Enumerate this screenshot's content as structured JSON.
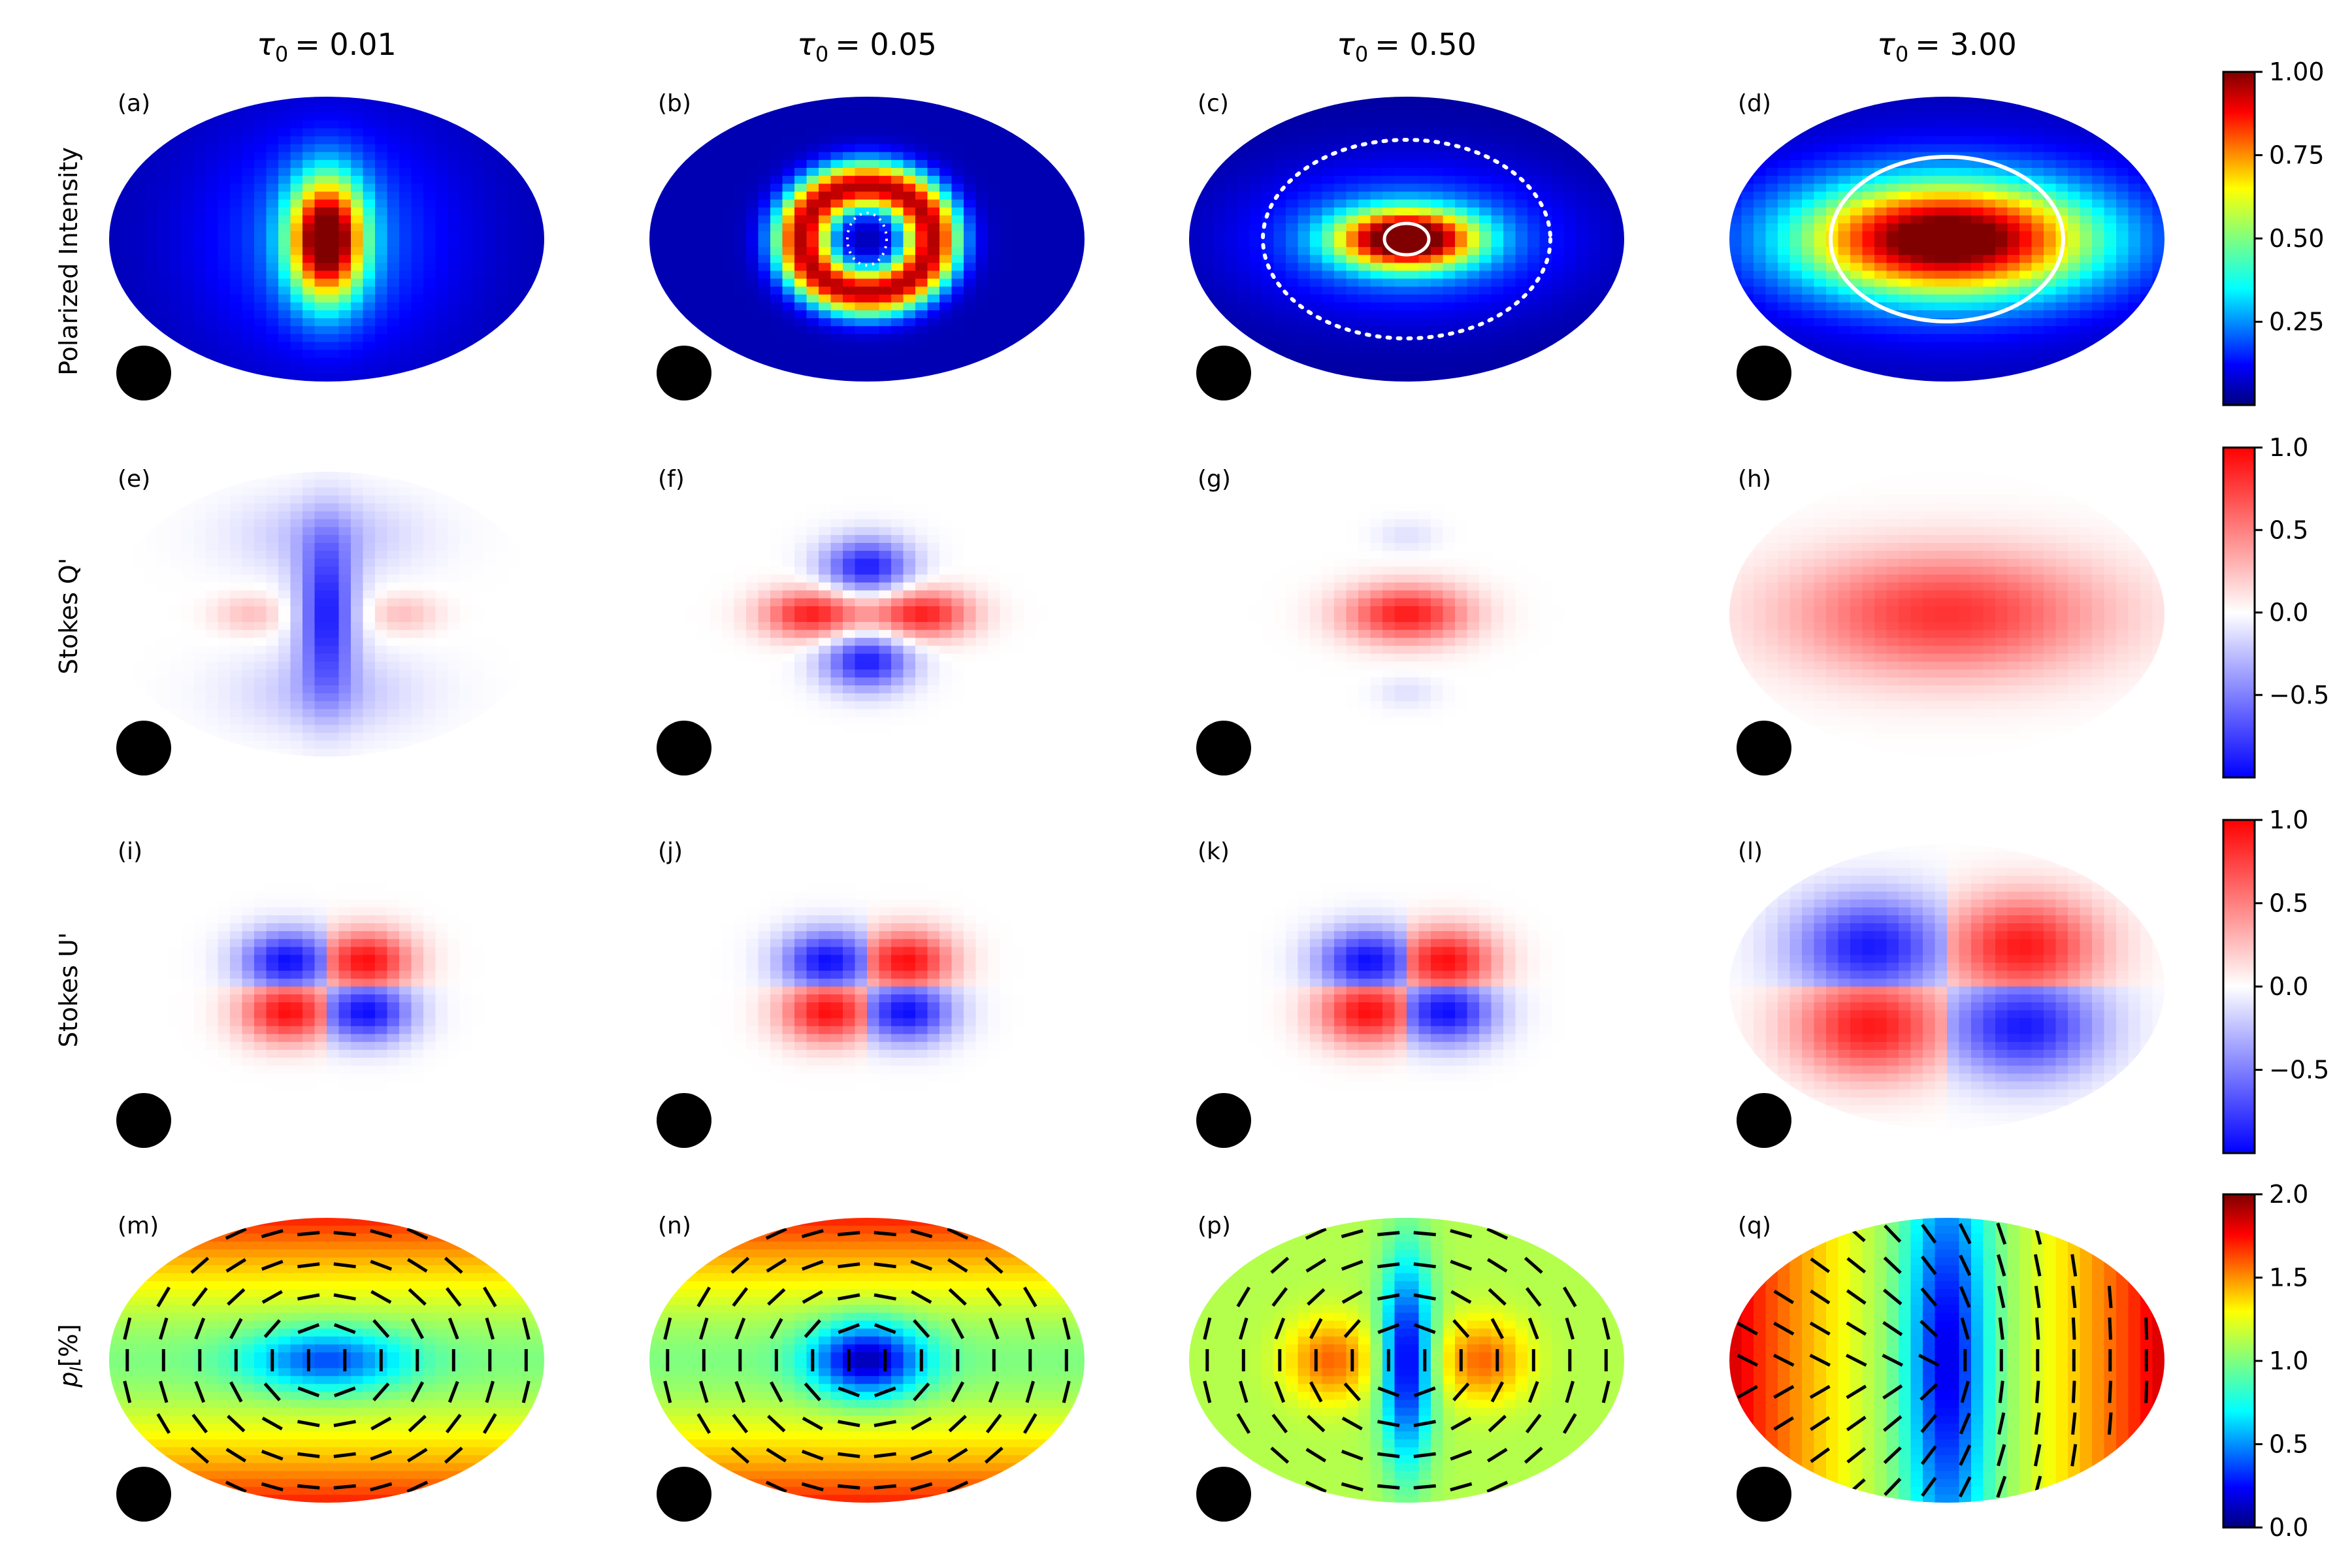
{
  "figure": {
    "columns": [
      {
        "tau_symbol": "τ",
        "subscript": "0",
        "value": "= 0.01"
      },
      {
        "tau_symbol": "τ",
        "subscript": "0",
        "value": "= 0.05"
      },
      {
        "tau_symbol": "τ",
        "subscript": "0",
        "value": "= 0.50"
      },
      {
        "tau_symbol": "τ",
        "subscript": "0",
        "value": "= 3.00"
      }
    ],
    "rows": [
      {
        "label": "Polarized Intensity",
        "italic": false
      },
      {
        "label": "Stokes Q'",
        "italic": false
      },
      {
        "label": "Stokes U'",
        "italic": false
      },
      {
        "label": "p",
        "sub": "l",
        "suffix": "[%]",
        "italic": true
      }
    ],
    "panel_labels": [
      [
        "(a)",
        "(b)",
        "(c)",
        "(d)"
      ],
      [
        "(e)",
        "(f)",
        "(g)",
        "(h)"
      ],
      [
        "(i)",
        "(j)",
        "(k)",
        "(l)"
      ],
      [
        "(m)",
        "(n)",
        "(p)",
        "(q)"
      ]
    ]
  },
  "chart_data": [
    {
      "type": "heatmap",
      "row": "Polarized Intensity",
      "colormap": "jet",
      "colorbar": {
        "min": 0.0,
        "max": 1.0,
        "ticks": [
          "0.25",
          "0.50",
          "0.75",
          "1.00"
        ],
        "tick_values": [
          0.25,
          0.5,
          0.75,
          1.0
        ]
      },
      "panels": [
        "(a)",
        "(b)",
        "(c)",
        "(d)"
      ],
      "tau0": [
        0.01,
        0.05,
        0.5,
        3.0
      ]
    },
    {
      "type": "heatmap",
      "row": "Stokes Q'",
      "colormap": "bwr",
      "colorbar": {
        "min": -1.0,
        "max": 1.0,
        "ticks": [
          "1.0",
          "0.5",
          "0.0",
          "−0.5"
        ],
        "tick_values": [
          1.0,
          0.5,
          0.0,
          -0.5
        ]
      },
      "panels": [
        "(e)",
        "(f)",
        "(g)",
        "(h)"
      ],
      "tau0": [
        0.01,
        0.05,
        0.5,
        3.0
      ]
    },
    {
      "type": "heatmap",
      "row": "Stokes U'",
      "colormap": "bwr",
      "colorbar": {
        "min": -1.0,
        "max": 1.0,
        "ticks": [
          "1.0",
          "0.5",
          "0.0",
          "−0.5"
        ],
        "tick_values": [
          1.0,
          0.5,
          0.0,
          -0.5
        ]
      },
      "panels": [
        "(i)",
        "(j)",
        "(k)",
        "(l)"
      ],
      "tau0": [
        0.01,
        0.05,
        0.5,
        3.0
      ]
    },
    {
      "type": "heatmap",
      "row": "p_l [%]",
      "colormap": "jet",
      "colorbar": {
        "min": 0.0,
        "max": 2.0,
        "ticks": [
          "2.0",
          "1.5",
          "1.0",
          "0.5",
          "0.0"
        ],
        "tick_values": [
          2.0,
          1.5,
          1.0,
          0.5,
          0.0
        ]
      },
      "panels": [
        "(m)",
        "(n)",
        "(p)",
        "(q)"
      ],
      "tau0": [
        0.01,
        0.05,
        0.5,
        3.0
      ],
      "overlay": "polarization vectors"
    }
  ],
  "colors": {
    "jet": [
      "#00007f",
      "#0000ff",
      "#007fff",
      "#00ffff",
      "#7fff7f",
      "#ffff00",
      "#ff7f00",
      "#ff0000",
      "#7f0000"
    ],
    "bwr": [
      "#0000ff",
      "#ffffff",
      "#ff0000"
    ],
    "beam": "#000000"
  }
}
